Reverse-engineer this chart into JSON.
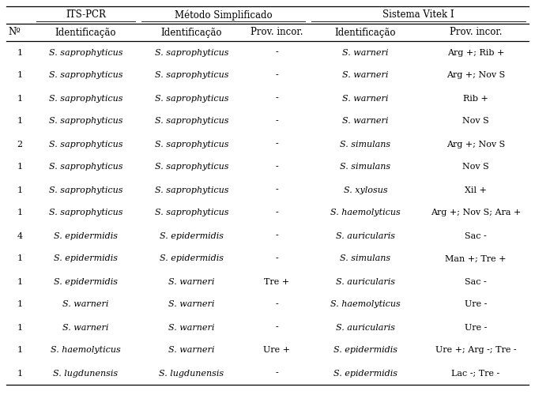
{
  "header_group": [
    "ITS-PCR",
    "Método Simplificado",
    "Sistema Vitek I"
  ],
  "header_row2": [
    "Nº",
    "Identificação",
    "Identificação",
    "Prov. incor.",
    "Identificação",
    "Prov. incor."
  ],
  "rows": [
    [
      "1",
      "S. saprophyticus",
      "S. saprophyticus",
      "-",
      "S. warneri",
      "Arg +; Rib +"
    ],
    [
      "1",
      "S. saprophyticus",
      "S. saprophyticus",
      "-",
      "S. warneri",
      "Arg +; Nov S"
    ],
    [
      "1",
      "S. saprophyticus",
      "S. saprophyticus",
      "-",
      "S. warneri",
      "Rib +"
    ],
    [
      "1",
      "S. saprophyticus",
      "S. saprophyticus",
      "-",
      "S. warneri",
      "Nov S"
    ],
    [
      "2",
      "S. saprophyticus",
      "S. saprophyticus",
      "-",
      "S. simulans",
      "Arg +; Nov S"
    ],
    [
      "1",
      "S. saprophyticus",
      "S. saprophyticus",
      "-",
      "S. simulans",
      "Nov S"
    ],
    [
      "1",
      "S. saprophyticus",
      "S. saprophyticus",
      "-",
      "S. xylosus",
      "Xil +"
    ],
    [
      "1",
      "S. saprophyticus",
      "S. saprophyticus",
      "-",
      "S. haemolyticus",
      "Arg +; Nov S; Ara +"
    ],
    [
      "4",
      "S. epidermidis",
      "S. epidermidis",
      "-",
      "S. auricularis",
      "Sac -"
    ],
    [
      "1",
      "S. epidermidis",
      "S. epidermidis",
      "-",
      "S. simulans",
      "Man +; Tre +"
    ],
    [
      "1",
      "S. epidermidis",
      "S. warneri",
      "Tre +",
      "S. auricularis",
      "Sac -"
    ],
    [
      "1",
      "S. warneri",
      "S. warneri",
      "-",
      "S. haemolyticus",
      "Ure -"
    ],
    [
      "1",
      "S. warneri",
      "S. warneri",
      "-",
      "S. auricularis",
      "Ure -"
    ],
    [
      "1",
      "S. haemolyticus",
      "S. warneri",
      "Ure +",
      "S. epidermidis",
      "Ure +; Arg -; Tre -"
    ],
    [
      "1",
      "S. lugdunensis",
      "S. lugdunensis",
      "-",
      "S. epidermidis",
      "Lac -; Tre -"
    ]
  ],
  "italic_cols": [
    1,
    2,
    4
  ],
  "bg_color": "#ffffff",
  "text_color": "#000000",
  "font_size": 8.0,
  "header_font_size": 8.5
}
